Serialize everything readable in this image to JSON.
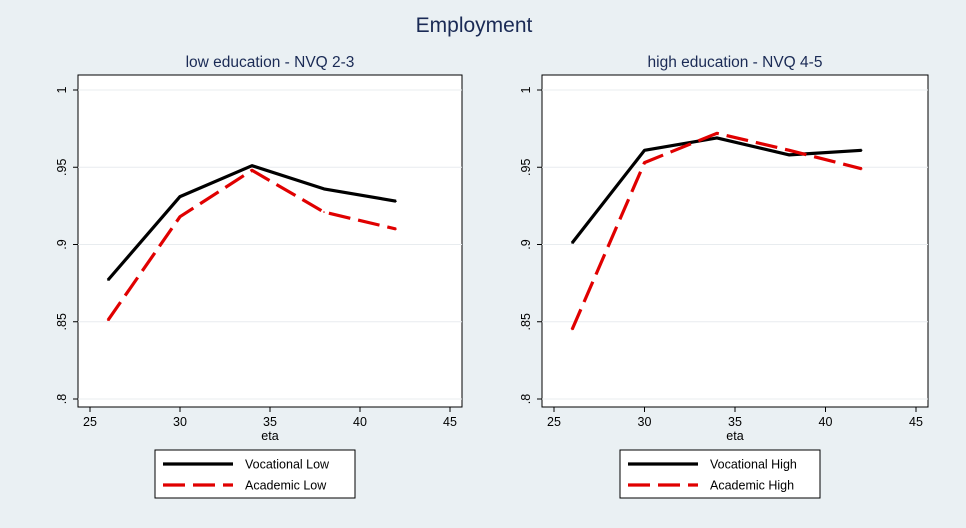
{
  "figure": {
    "title": "Employment"
  },
  "chart_data": [
    {
      "type": "line",
      "title": "low education - NVQ 2-3",
      "xlabel": "eta",
      "ylabel": "",
      "xlim": [
        25,
        45
      ],
      "ylim": [
        0.8,
        1.0
      ],
      "xticks": [
        25,
        30,
        35,
        40,
        45
      ],
      "yticks": [
        0.8,
        0.85,
        0.9,
        0.95,
        1.0
      ],
      "yticklabels": [
        ".8",
        ".85",
        ".9",
        ".95",
        "1"
      ],
      "grid": true,
      "legend_position": "bottom",
      "x": [
        26,
        30,
        34,
        38,
        42
      ],
      "series": [
        {
          "name": "Vocational Low",
          "values": [
            0.877,
            0.931,
            0.951,
            0.936,
            0.928
          ],
          "color": "#000000",
          "dash": "solid"
        },
        {
          "name": "Academic Low",
          "values": [
            0.851,
            0.918,
            0.948,
            0.921,
            0.91
          ],
          "color": "#e00000",
          "dash": "long-dash"
        }
      ]
    },
    {
      "type": "line",
      "title": "high education - NVQ 4-5",
      "xlabel": "eta",
      "ylabel": "",
      "xlim": [
        25,
        45
      ],
      "ylim": [
        0.8,
        1.0
      ],
      "xticks": [
        25,
        30,
        35,
        40,
        45
      ],
      "yticks": [
        0.8,
        0.85,
        0.9,
        0.95,
        1.0
      ],
      "yticklabels": [
        ".8",
        ".85",
        ".9",
        ".95",
        "1"
      ],
      "grid": true,
      "legend_position": "bottom",
      "x": [
        26,
        30,
        34,
        38,
        42
      ],
      "series": [
        {
          "name": "Vocational High",
          "values": [
            0.901,
            0.961,
            0.969,
            0.958,
            0.961
          ],
          "color": "#000000",
          "dash": "solid"
        },
        {
          "name": "Academic High",
          "values": [
            0.845,
            0.953,
            0.972,
            0.961,
            0.949
          ],
          "color": "#e00000",
          "dash": "long-dash"
        }
      ]
    }
  ]
}
